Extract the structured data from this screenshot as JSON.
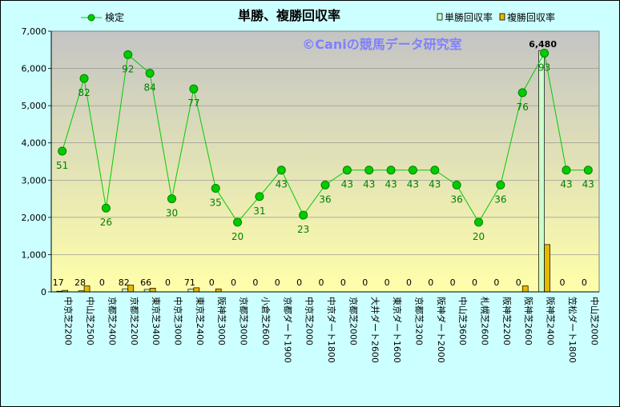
{
  "chart_data": {
    "type": "bar",
    "title": "単勝、複勝回収率",
    "watermark": "©Caniの競馬データ研究室",
    "ylim": [
      0,
      7000
    ],
    "yticks": [
      0,
      1000,
      2000,
      3000,
      4000,
      5000,
      6000,
      7000
    ],
    "ytick_labels": [
      "0",
      "1,000",
      "2,000",
      "3,000",
      "4,000",
      "5,000",
      "6,000",
      "7,000"
    ],
    "legend": {
      "left": "検定",
      "right": [
        "単勝回収率",
        "複勝回収率"
      ]
    },
    "categories": [
      "中京芝2200",
      "中山芝2500",
      "京都芝2400",
      "京都芝2200",
      "東京芝3400",
      "中京芝3000",
      "東京芝2400",
      "阪神芝3000",
      "京都芝3000",
      "小倉芝2600",
      "京都ダート1900",
      "中京芝2000",
      "中京ダート1800",
      "京都芝2000",
      "大井ダート2600",
      "東京ダート1600",
      "京都芝3200",
      "阪神ダート2000",
      "中山芝3600",
      "札幌芝2600",
      "阪神芝2200",
      "阪神芝2600",
      "阪神芝2400",
      "笠松ダート1800",
      "中山芝2000"
    ],
    "series": [
      {
        "name": "単勝回収率",
        "type": "bar",
        "color": "#ccffcc",
        "values": [
          17,
          28,
          0,
          82,
          66,
          0,
          71,
          0,
          0,
          0,
          0,
          0,
          0,
          0,
          0,
          0,
          0,
          0,
          0,
          0,
          0,
          0,
          6480,
          0,
          0
        ],
        "labels": [
          "17",
          "28",
          "0",
          "82",
          "66",
          "0",
          "71",
          "0",
          "0",
          "0",
          "0",
          "0",
          "0",
          "0",
          "0",
          "0",
          "0",
          "0",
          "0",
          "0",
          "0",
          "0",
          "6,480",
          "0",
          "0"
        ]
      },
      {
        "name": "複勝回収率",
        "type": "bar",
        "color": "#e6b800",
        "values": [
          40,
          160,
          0,
          180,
          100,
          0,
          110,
          80,
          0,
          0,
          0,
          0,
          0,
          0,
          0,
          0,
          0,
          0,
          0,
          0,
          0,
          160,
          1270,
          0,
          0
        ]
      },
      {
        "name": "検定",
        "type": "line",
        "color": "#00cc00",
        "values": [
          3780,
          5730,
          2250,
          6370,
          5870,
          2500,
          5450,
          2780,
          1870,
          2560,
          3270,
          2060,
          2870,
          3270,
          3270,
          3270,
          3270,
          3270,
          2870,
          1870,
          2870,
          5350,
          6410,
          3270,
          3270
        ],
        "labels": [
          "51",
          "82",
          "26",
          "92",
          "84",
          "30",
          "77",
          "35",
          "20",
          "31",
          "43",
          "23",
          "36",
          "43",
          "43",
          "43",
          "43",
          "43",
          "36",
          "20",
          "36",
          "76",
          "93",
          "43",
          "43"
        ]
      }
    ]
  }
}
